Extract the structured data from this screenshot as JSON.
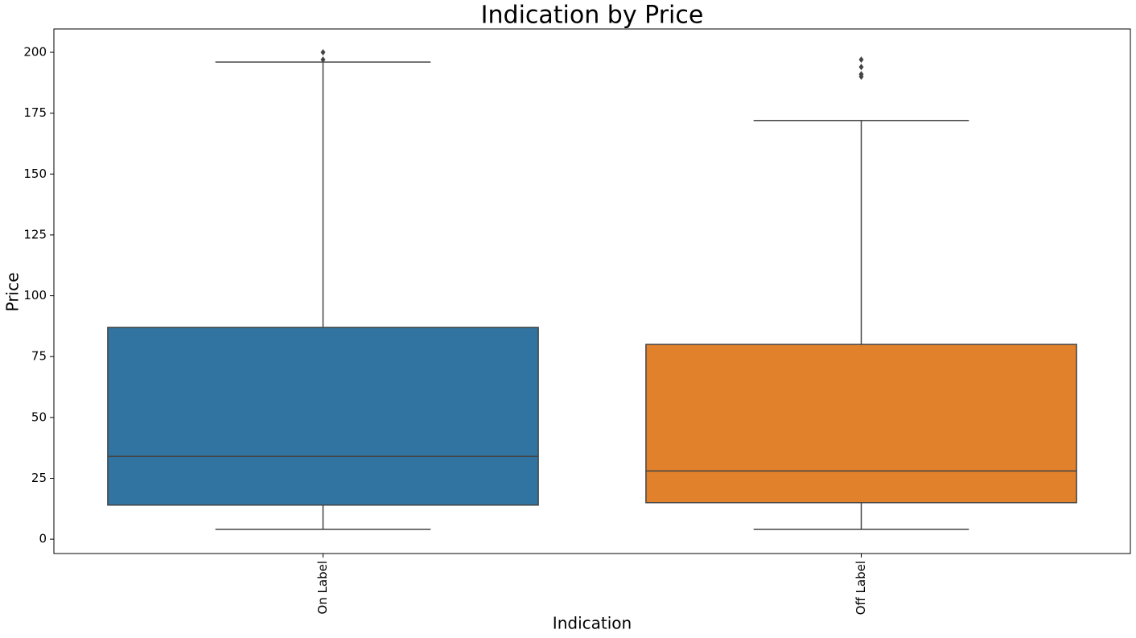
{
  "chart_data": {
    "type": "box",
    "title": "Indication by Price",
    "xlabel": "Indication",
    "ylabel": "Price",
    "categories": [
      "On Label",
      "Off Label"
    ],
    "boxes": [
      {
        "low": 4,
        "q1": 14,
        "median": 34,
        "q3": 87,
        "high": 196,
        "outliers": [
          200,
          197
        ],
        "color": "#3274a1"
      },
      {
        "low": 4,
        "q1": 15,
        "median": 28,
        "q3": 80,
        "high": 172,
        "outliers": [
          197,
          194,
          191,
          190
        ],
        "color": "#e1812c"
      }
    ],
    "line_color": "#444444",
    "ylim": [
      -5.9,
      209.6
    ],
    "yticks": [
      0,
      25,
      50,
      75,
      100,
      125,
      150,
      175,
      200
    ],
    "grid": false
  }
}
